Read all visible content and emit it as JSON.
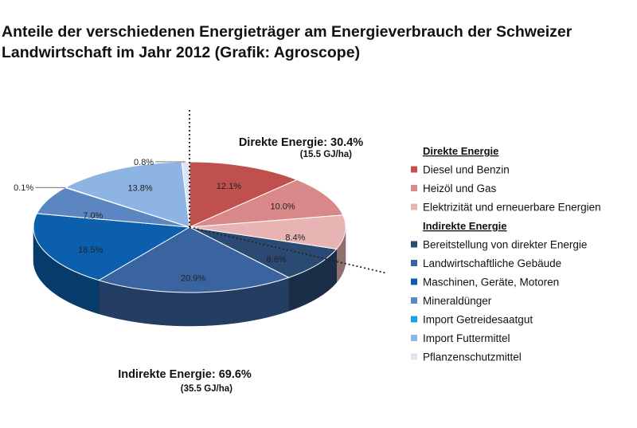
{
  "title_lines": [
    "Anteile der verschiedenen Energieträger am Energieverbrauch der Schweizer",
    "Landwirtschaft im Jahr 2012 (Grafik: Agroscope)"
  ],
  "chart_data": {
    "type": "pie",
    "title": "Anteile der verschiedenen Energieträger am Energieverbrauch der Schweizer Landwirtschaft im Jahr 2012 (Grafik: Agroscope)",
    "unit": "%",
    "slices": [
      {
        "name": "Diesel und Benzin",
        "value": 12.1,
        "label": "12.1%",
        "color": "#C0504D",
        "group": "Direkte Energie"
      },
      {
        "name": "Heizöl und Gas",
        "value": 10.0,
        "label": "10.0%",
        "color": "#D9888A",
        "group": "Direkte Energie"
      },
      {
        "name": "Elektrizität und erneuerbare Energien",
        "value": 8.4,
        "label": "8.4%",
        "color": "#E8B4B3",
        "group": "Direkte Energie"
      },
      {
        "name": "Bereitstellung von direkter Energie",
        "value": 8.6,
        "label": "8.6%",
        "color": "#2B4A73",
        "group": "Indirekte Energie"
      },
      {
        "name": "Landwirtschaftliche Gebäude",
        "value": 20.9,
        "label": "20.9%",
        "color": "#3A64A0",
        "group": "Indirekte Energie"
      },
      {
        "name": "Maschinen, Geräte, Motoren",
        "value": 18.5,
        "label": "18.5%",
        "color": "#0B5FAD",
        "group": "Indirekte Energie"
      },
      {
        "name": "Mineraldünger",
        "value": 7.0,
        "label": "7.0%",
        "color": "#5B86C2",
        "group": "Indirekte Energie"
      },
      {
        "name": "Import Getreidesaatgut",
        "value": 0.1,
        "label": "0.1%",
        "color": "#1BA1E2",
        "group": "Indirekte Energie"
      },
      {
        "name": "Import Futtermittel",
        "value": 13.8,
        "label": "13.8%",
        "color": "#8EB4E3",
        "group": "Indirekte Energie"
      },
      {
        "name": "Pflanzenschutzmittel",
        "value": 0.8,
        "label": "0.8%",
        "color": "#DCE6F2",
        "group": "Indirekte Energie"
      }
    ],
    "groups": [
      {
        "name": "Direkte Energie",
        "label": "Direkte Energie: 30.4%",
        "sublabel": "(15.5 GJ/ha)"
      },
      {
        "name": "Indirekte Energie",
        "label": "Indirekte Energie: 69.6%",
        "sublabel": "(35.5 GJ/ha)"
      }
    ],
    "legend": {
      "placement": "right",
      "sections": [
        {
          "heading": "Direkte Energie",
          "items": [
            "Diesel und Benzin",
            "Heizöl und Gas",
            "Elektrizität und erneuerbare Energien"
          ]
        },
        {
          "heading": "Indirekte Energie",
          "items": [
            "Bereitstellung von direkter Energie",
            "Landwirtschaftliche Gebäude",
            "Maschinen, Geräte, Motoren",
            "Mineraldünger",
            "Import Getreidesaatgut",
            "Import Futtermittel",
            "Pflanzenschutzmittel"
          ]
        }
      ]
    }
  }
}
